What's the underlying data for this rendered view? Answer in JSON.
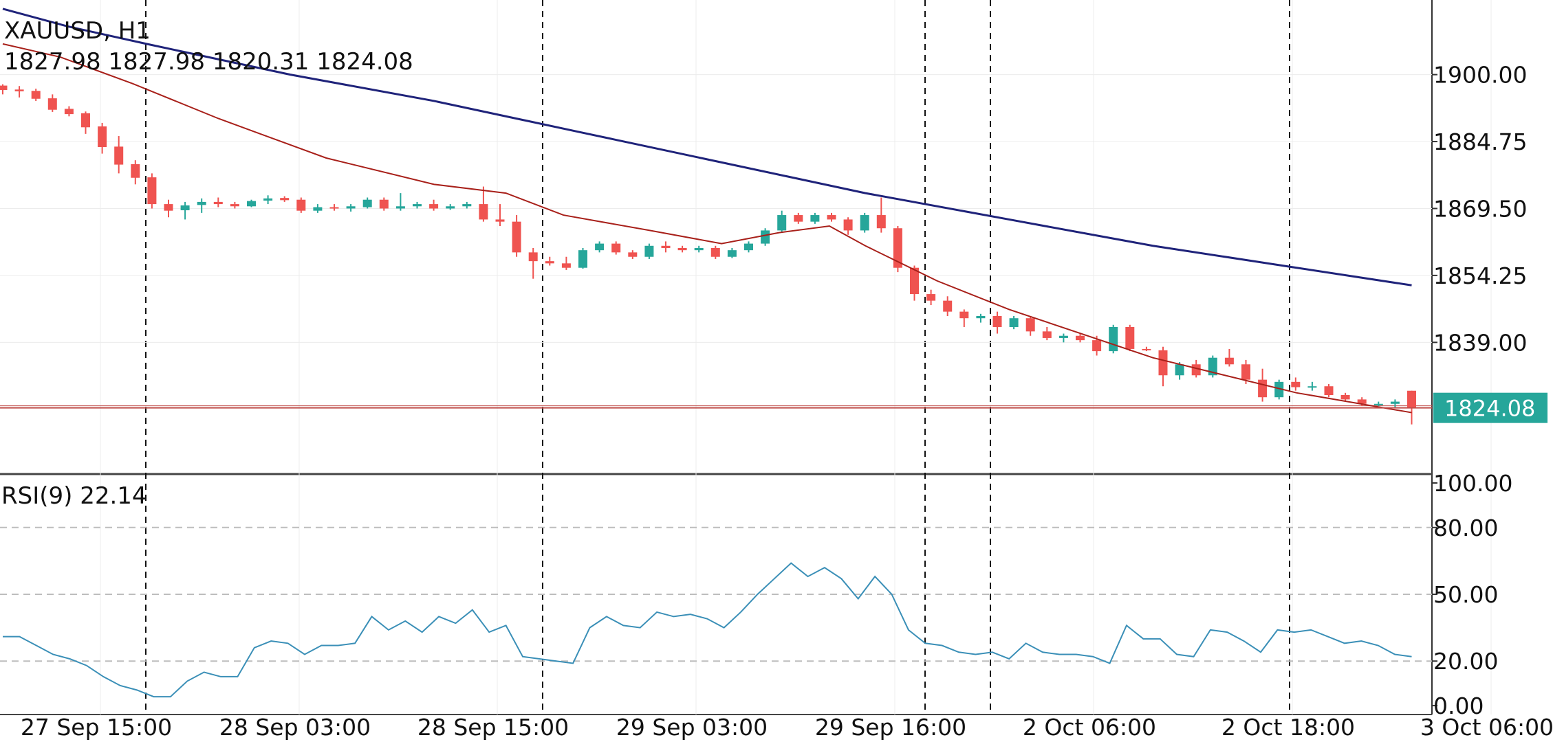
{
  "chart_data": [
    {
      "type": "candlestick",
      "symbol_label": "XAUUSD, H1",
      "ohlc_label": "1827.98 1827.98 1820.31 1824.08",
      "y_ticks": [
        "1900.00",
        "1884.75",
        "1869.50",
        "1854.25",
        "1839.00"
      ],
      "ylim": [
        1809,
        1917
      ],
      "current_price": 1824.08,
      "current_price_label": "1824.08",
      "x_ticks": [
        "27 Sep 15:00",
        "28 Sep 03:00",
        "28 Sep 15:00",
        "29 Sep 03:00",
        "29 Sep 16:00",
        "2 Oct 06:00",
        "2 Oct 18:00",
        "3 Oct 06:00"
      ],
      "candles": [
        [
          1897.5,
          1897.8,
          1895.5,
          1896.5
        ],
        [
          1896.6,
          1897.4,
          1894.8,
          1896.2
        ],
        [
          1896.3,
          1896.8,
          1894.0,
          1894.5
        ],
        [
          1894.6,
          1895.5,
          1891.5,
          1892.0
        ],
        [
          1892.2,
          1892.8,
          1890.5,
          1891.0
        ],
        [
          1891.2,
          1891.6,
          1886.5,
          1888.0
        ],
        [
          1888.2,
          1889.0,
          1882.0,
          1883.5
        ],
        [
          1883.6,
          1886.0,
          1877.5,
          1879.5
        ],
        [
          1879.6,
          1880.5,
          1875.0,
          1876.5
        ],
        [
          1876.6,
          1877.5,
          1869.5,
          1870.5
        ],
        [
          1870.5,
          1871.5,
          1867.5,
          1869.0
        ],
        [
          1869.1,
          1871.0,
          1867.0,
          1870.2
        ],
        [
          1870.3,
          1871.8,
          1868.5,
          1871.0
        ],
        [
          1871.0,
          1872.0,
          1869.8,
          1870.5
        ],
        [
          1870.5,
          1871.0,
          1869.5,
          1870.0
        ],
        [
          1870.0,
          1871.5,
          1869.8,
          1871.2
        ],
        [
          1871.3,
          1872.5,
          1870.5,
          1871.8
        ],
        [
          1871.9,
          1872.3,
          1871.0,
          1871.4
        ],
        [
          1871.5,
          1872.0,
          1868.5,
          1869.0
        ],
        [
          1869.0,
          1870.5,
          1868.5,
          1869.8
        ],
        [
          1869.8,
          1870.5,
          1869.0,
          1869.5
        ],
        [
          1869.5,
          1870.5,
          1868.8,
          1870.0
        ],
        [
          1869.8,
          1872.0,
          1869.5,
          1871.5
        ],
        [
          1871.5,
          1872.0,
          1869.0,
          1869.5
        ],
        [
          1869.5,
          1873.0,
          1869.0,
          1870.0
        ],
        [
          1870.0,
          1871.0,
          1869.5,
          1870.5
        ],
        [
          1870.5,
          1871.5,
          1869.0,
          1869.5
        ],
        [
          1869.5,
          1870.5,
          1869.2,
          1870.0
        ],
        [
          1870.0,
          1871.0,
          1869.5,
          1870.5
        ],
        [
          1870.5,
          1874.5,
          1866.5,
          1867.0
        ],
        [
          1867.0,
          1870.5,
          1865.5,
          1866.5
        ],
        [
          1866.5,
          1868.0,
          1858.5,
          1859.5
        ],
        [
          1859.5,
          1860.5,
          1853.5,
          1857.5
        ],
        [
          1857.5,
          1858.5,
          1856.5,
          1857.0
        ],
        [
          1857.0,
          1858.5,
          1855.5,
          1856.0
        ],
        [
          1856.0,
          1860.5,
          1855.8,
          1860.0
        ],
        [
          1860.0,
          1862.0,
          1859.5,
          1861.5
        ],
        [
          1861.5,
          1862.0,
          1859.0,
          1859.5
        ],
        [
          1859.5,
          1860.0,
          1858.0,
          1858.5
        ],
        [
          1858.5,
          1861.5,
          1858.0,
          1861.0
        ],
        [
          1861.0,
          1862.0,
          1859.5,
          1860.5
        ],
        [
          1860.5,
          1861.0,
          1859.5,
          1860.0
        ],
        [
          1860.0,
          1861.0,
          1859.5,
          1860.5
        ],
        [
          1860.5,
          1861.0,
          1858.0,
          1858.5
        ],
        [
          1858.5,
          1860.5,
          1858.2,
          1860.0
        ],
        [
          1860.0,
          1862.0,
          1859.5,
          1861.5
        ],
        [
          1861.5,
          1865.0,
          1861.0,
          1864.5
        ],
        [
          1864.5,
          1869.0,
          1864.0,
          1868.0
        ],
        [
          1868.0,
          1868.5,
          1866.0,
          1866.5
        ],
        [
          1866.5,
          1868.5,
          1866.0,
          1868.0
        ],
        [
          1868.0,
          1868.5,
          1866.5,
          1867.0
        ],
        [
          1867.0,
          1867.5,
          1863.5,
          1864.5
        ],
        [
          1864.5,
          1868.5,
          1864.0,
          1868.0
        ],
        [
          1868.0,
          1872.0,
          1864.0,
          1865.0
        ],
        [
          1865.0,
          1865.5,
          1855.0,
          1856.0
        ],
        [
          1856.0,
          1856.5,
          1848.5,
          1850.0
        ],
        [
          1850.0,
          1851.0,
          1847.5,
          1848.5
        ],
        [
          1848.5,
          1849.5,
          1845.0,
          1846.0
        ],
        [
          1846.0,
          1846.5,
          1842.5,
          1844.5
        ],
        [
          1844.5,
          1845.5,
          1843.5,
          1845.0
        ],
        [
          1845.0,
          1846.0,
          1841.0,
          1842.5
        ],
        [
          1842.5,
          1845.0,
          1842.0,
          1844.5
        ],
        [
          1844.5,
          1845.0,
          1840.5,
          1841.5
        ],
        [
          1841.5,
          1842.5,
          1839.5,
          1840.0
        ],
        [
          1840.0,
          1841.0,
          1839.0,
          1840.5
        ],
        [
          1840.5,
          1841.0,
          1839.0,
          1839.5
        ],
        [
          1839.5,
          1840.5,
          1836.0,
          1837.0
        ],
        [
          1837.0,
          1843.0,
          1836.5,
          1842.5
        ],
        [
          1842.5,
          1843.0,
          1837.0,
          1837.5
        ],
        [
          1837.5,
          1838.0,
          1837.0,
          1837.2
        ],
        [
          1837.2,
          1838.0,
          1829.0,
          1831.5
        ],
        [
          1831.5,
          1834.5,
          1830.5,
          1834.0
        ],
        [
          1834.0,
          1835.0,
          1831.0,
          1831.5
        ],
        [
          1831.5,
          1836.0,
          1831.0,
          1835.5
        ],
        [
          1835.5,
          1837.5,
          1833.5,
          1834.0
        ],
        [
          1834.0,
          1835.0,
          1829.5,
          1830.5
        ],
        [
          1830.5,
          1833.0,
          1825.5,
          1826.5
        ],
        [
          1826.5,
          1830.5,
          1826.0,
          1830.0
        ],
        [
          1830.0,
          1831.0,
          1828.0,
          1828.8
        ],
        [
          1828.8,
          1830.0,
          1828.0,
          1829.0
        ],
        [
          1829.0,
          1829.5,
          1826.5,
          1827.0
        ],
        [
          1827.0,
          1827.5,
          1825.5,
          1826.0
        ],
        [
          1826.0,
          1826.5,
          1824.5,
          1825.0
        ],
        [
          1825.0,
          1825.5,
          1824.5,
          1825.0
        ],
        [
          1825.0,
          1826.0,
          1824.0,
          1825.5
        ],
        [
          1827.98,
          1827.98,
          1820.31,
          1824.08
        ]
      ],
      "ma_slow": [
        [
          0,
          1915.0
        ],
        [
          9,
          1911.0
        ],
        [
          20,
          1907.0
        ],
        [
          40,
          1900.0
        ],
        [
          60,
          1894.0
        ],
        [
          80,
          1887.0
        ],
        [
          100,
          1880.0
        ],
        [
          120,
          1873.0
        ],
        [
          140,
          1867.0
        ],
        [
          160,
          1861.0
        ],
        [
          180,
          1856.0
        ],
        [
          196,
          1852.0
        ]
      ],
      "ma_fast": [
        [
          0,
          1907.0
        ],
        [
          8,
          1904.0
        ],
        [
          18,
          1898.0
        ],
        [
          30,
          1890.0
        ],
        [
          45,
          1881.0
        ],
        [
          60,
          1875.0
        ],
        [
          70,
          1873.0
        ],
        [
          78,
          1868.0
        ],
        [
          90,
          1864.5
        ],
        [
          100,
          1861.5
        ],
        [
          108,
          1864.0
        ],
        [
          115,
          1865.5
        ],
        [
          120,
          1861.0
        ],
        [
          130,
          1853.0
        ],
        [
          140,
          1846.5
        ],
        [
          150,
          1841.0
        ],
        [
          160,
          1835.5
        ],
        [
          170,
          1831.5
        ],
        [
          180,
          1827.5
        ],
        [
          196,
          1823.0
        ]
      ]
    },
    {
      "type": "line",
      "indicator_label": "RSI(9) 22.14",
      "y_ticks": [
        "100.00",
        "80.00",
        "50.00",
        "20.00",
        "0.00"
      ],
      "ylim": [
        -4,
        104
      ],
      "levels": [
        80,
        50,
        20
      ],
      "values": [
        31,
        31,
        27,
        23,
        21,
        18,
        13,
        9,
        7,
        4,
        4,
        11,
        15,
        13,
        13,
        26,
        29,
        28,
        23,
        27,
        27,
        28,
        40,
        34,
        38,
        33,
        40,
        37,
        43,
        33,
        36,
        22,
        21,
        20,
        19,
        35,
        40,
        36,
        35,
        42,
        40,
        41,
        39,
        35,
        42,
        50,
        57,
        64,
        58,
        62,
        57,
        48,
        58,
        50,
        34,
        28,
        27,
        24,
        23,
        24,
        21,
        28,
        24,
        23,
        23,
        22,
        19,
        36,
        30,
        30,
        23,
        22,
        34,
        33,
        29,
        24,
        34,
        33,
        34,
        31,
        28,
        29,
        27,
        23,
        22
      ]
    }
  ]
}
